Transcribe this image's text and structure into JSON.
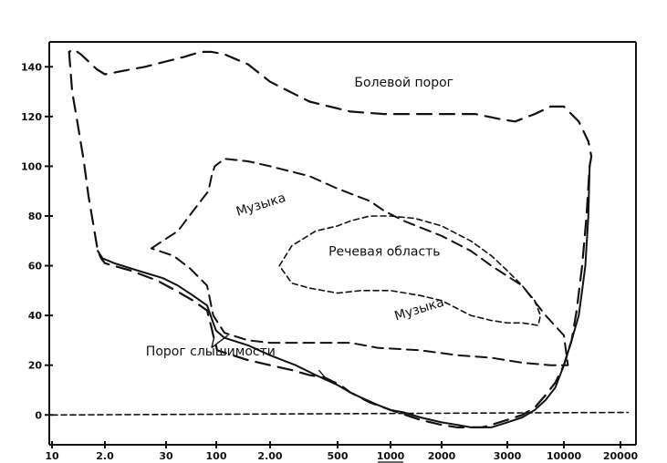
{
  "chart_data": {
    "type": "line",
    "title": "",
    "xlabel": "",
    "ylabel": "",
    "x_tick_labels": [
      "10",
      "2.0",
      "30",
      "100",
      "2.00",
      "500",
      "1000",
      "2000",
      "3000",
      "10000",
      "20000"
    ],
    "y_ticks": [
      0,
      20,
      40,
      60,
      80,
      100,
      120,
      140
    ],
    "y_tick_labels": [
      "0",
      "20",
      "40",
      "60",
      "80",
      "100",
      "120",
      "140"
    ],
    "ylim": [
      -12,
      150
    ],
    "grid": false,
    "series": [
      {
        "name": "Болевой порог",
        "style": "long-dash",
        "points": [
          [
            2.1,
            146
          ],
          [
            2.4,
            130
          ],
          [
            3.0,
            118
          ],
          [
            4.0,
            102
          ],
          [
            4.9,
            88
          ],
          [
            6.0,
            77
          ],
          [
            6.8,
            70
          ],
          [
            7.3,
            66
          ],
          [
            8.5,
            63
          ],
          [
            10,
            61
          ],
          [
            13,
            58
          ],
          [
            17,
            54
          ],
          [
            21,
            50
          ],
          [
            30,
            46
          ],
          [
            40,
            42
          ],
          [
            50,
            38
          ],
          [
            60,
            35
          ],
          [
            70,
            32
          ],
          [
            75,
            31
          ],
          [
            80,
            30
          ],
          [
            100,
            26
          ],
          [
            150,
            22
          ],
          [
            200,
            20
          ],
          [
            250,
            18
          ],
          [
            300,
            16
          ],
          [
            350,
            15
          ],
          [
            420,
            12
          ],
          [
            500,
            9
          ],
          [
            700,
            5
          ],
          [
            1000,
            2
          ],
          [
            1500,
            -2
          ],
          [
            2000,
            -4
          ],
          [
            2500,
            -5
          ],
          [
            3000,
            -5
          ],
          [
            3500,
            -5
          ],
          [
            4000,
            -4
          ],
          [
            5000,
            -2
          ],
          [
            6000,
            0
          ],
          [
            7000,
            3
          ],
          [
            8000,
            8
          ],
          [
            9000,
            13
          ],
          [
            10000,
            20
          ],
          [
            11000,
            30
          ],
          [
            11700,
            42
          ],
          [
            12500,
            60
          ],
          [
            13200,
            80
          ],
          [
            13700,
            100
          ],
          [
            14000,
            104
          ],
          [
            13500,
            110
          ],
          [
            12000,
            118
          ],
          [
            10000,
            124
          ],
          [
            8500,
            124
          ],
          [
            7000,
            121
          ],
          [
            5500,
            118
          ],
          [
            4500,
            119
          ],
          [
            3200,
            121
          ],
          [
            1500,
            121
          ],
          [
            900,
            121
          ],
          [
            500,
            122
          ],
          [
            300,
            126
          ],
          [
            200,
            134
          ],
          [
            150,
            141
          ],
          [
            110,
            145
          ],
          [
            60,
            146
          ],
          [
            35,
            146
          ],
          [
            25,
            144
          ],
          [
            15,
            140
          ],
          [
            10,
            137
          ],
          [
            7,
            139
          ],
          [
            5,
            142
          ],
          [
            3.5,
            145
          ],
          [
            2.6,
            147
          ],
          [
            2.1,
            146
          ]
        ]
      },
      {
        "name": "Музыка",
        "style": "medium-dash",
        "points": [
          [
            16,
            67
          ],
          [
            22,
            74
          ],
          [
            30,
            82
          ],
          [
            45,
            90
          ],
          [
            60,
            96
          ],
          [
            80,
            100
          ],
          [
            110,
            103
          ],
          [
            150,
            102
          ],
          [
            200,
            100
          ],
          [
            300,
            96
          ],
          [
            400,
            91
          ],
          [
            500,
            89
          ],
          [
            700,
            86
          ],
          [
            900,
            82
          ],
          [
            1200,
            78
          ],
          [
            2000,
            72
          ],
          [
            3000,
            66
          ],
          [
            4000,
            60
          ],
          [
            6000,
            52
          ],
          [
            8000,
            40
          ],
          [
            10000,
            32
          ],
          [
            10500,
            20
          ],
          [
            8500,
            20
          ],
          [
            6000,
            21
          ],
          [
            4000,
            23
          ],
          [
            2500,
            24
          ],
          [
            1500,
            26
          ],
          [
            800,
            27
          ],
          [
            500,
            29
          ],
          [
            300,
            29
          ],
          [
            200,
            29
          ],
          [
            150,
            30
          ],
          [
            110,
            33
          ],
          [
            70,
            40
          ],
          [
            40,
            52
          ],
          [
            28,
            59
          ],
          [
            20,
            64
          ],
          [
            16,
            67
          ]
        ]
      },
      {
        "name": "Речевая область",
        "style": "short-dash",
        "points": [
          [
            220,
            60
          ],
          [
            250,
            68
          ],
          [
            320,
            74
          ],
          [
            400,
            76
          ],
          [
            500,
            78
          ],
          [
            700,
            80
          ],
          [
            1000,
            80
          ],
          [
            1400,
            79
          ],
          [
            2000,
            76
          ],
          [
            3000,
            70
          ],
          [
            4000,
            64
          ],
          [
            5000,
            58
          ],
          [
            6000,
            52
          ],
          [
            7000,
            46
          ],
          [
            7500,
            40
          ],
          [
            7300,
            36
          ],
          [
            6000,
            37
          ],
          [
            5000,
            37
          ],
          [
            4000,
            38
          ],
          [
            3000,
            40
          ],
          [
            2000,
            46
          ],
          [
            1500,
            48
          ],
          [
            1000,
            50
          ],
          [
            600,
            50
          ],
          [
            400,
            49
          ],
          [
            300,
            51
          ],
          [
            250,
            53
          ],
          [
            220,
            60
          ]
        ]
      },
      {
        "name": "Порог слышимости",
        "style": "solid",
        "points": [
          [
            7.3,
            66
          ],
          [
            9,
            63
          ],
          [
            11,
            61
          ],
          [
            14,
            58
          ],
          [
            18,
            55
          ],
          [
            22,
            52
          ],
          [
            30,
            48
          ],
          [
            40,
            44
          ],
          [
            55,
            40
          ],
          [
            70,
            37
          ],
          [
            90,
            34
          ],
          [
            110,
            31
          ],
          [
            150,
            28
          ],
          [
            200,
            24
          ],
          [
            260,
            20
          ],
          [
            320,
            16
          ],
          [
            400,
            12
          ],
          [
            500,
            9
          ],
          [
            600,
            7
          ],
          [
            800,
            4
          ],
          [
            1000,
            2
          ],
          [
            1200,
            1
          ],
          [
            1500,
            -1
          ],
          [
            2000,
            -3
          ],
          [
            2500,
            -4
          ],
          [
            3000,
            -5
          ],
          [
            3500,
            -5
          ],
          [
            4000,
            -5
          ],
          [
            5000,
            -3
          ],
          [
            6000,
            -1
          ],
          [
            7000,
            2
          ],
          [
            8000,
            6
          ],
          [
            9000,
            11
          ],
          [
            10000,
            20
          ],
          [
            11000,
            30
          ],
          [
            12000,
            40
          ],
          [
            12500,
            50
          ],
          [
            13000,
            60
          ],
          [
            13500,
            80
          ],
          [
            13700,
            100
          ]
        ]
      },
      {
        "name": "Нулевой уровень",
        "style": "short-dash",
        "points": [
          [
            1,
            0
          ],
          [
            22000,
            1
          ]
        ]
      }
    ],
    "annotations": [
      {
        "text": "Болевой порог",
        "x": 1200,
        "y": 132
      },
      {
        "text": "Музыка",
        "x": 180,
        "y": 83
      },
      {
        "text": "Речевая область",
        "x": 900,
        "y": 64
      },
      {
        "text": "Музыка",
        "x": 1500,
        "y": 41
      },
      {
        "text": "Порог слышимости",
        "x": 55,
        "y": 24
      }
    ]
  }
}
